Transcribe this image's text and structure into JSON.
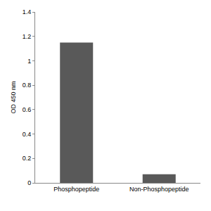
{
  "chart_data": {
    "type": "bar",
    "y_label": "OD 450 nm",
    "categories": [
      "Phosphopeptide",
      "Non-Phosphopeptide"
    ],
    "values": [
      1.15,
      0.07
    ],
    "color": "#595959",
    "ylim": [
      0,
      1.4
    ],
    "yticks": [
      0,
      0.2,
      0.4,
      0.6,
      0.8,
      1,
      1.2,
      1.4
    ],
    "grid": false
  }
}
